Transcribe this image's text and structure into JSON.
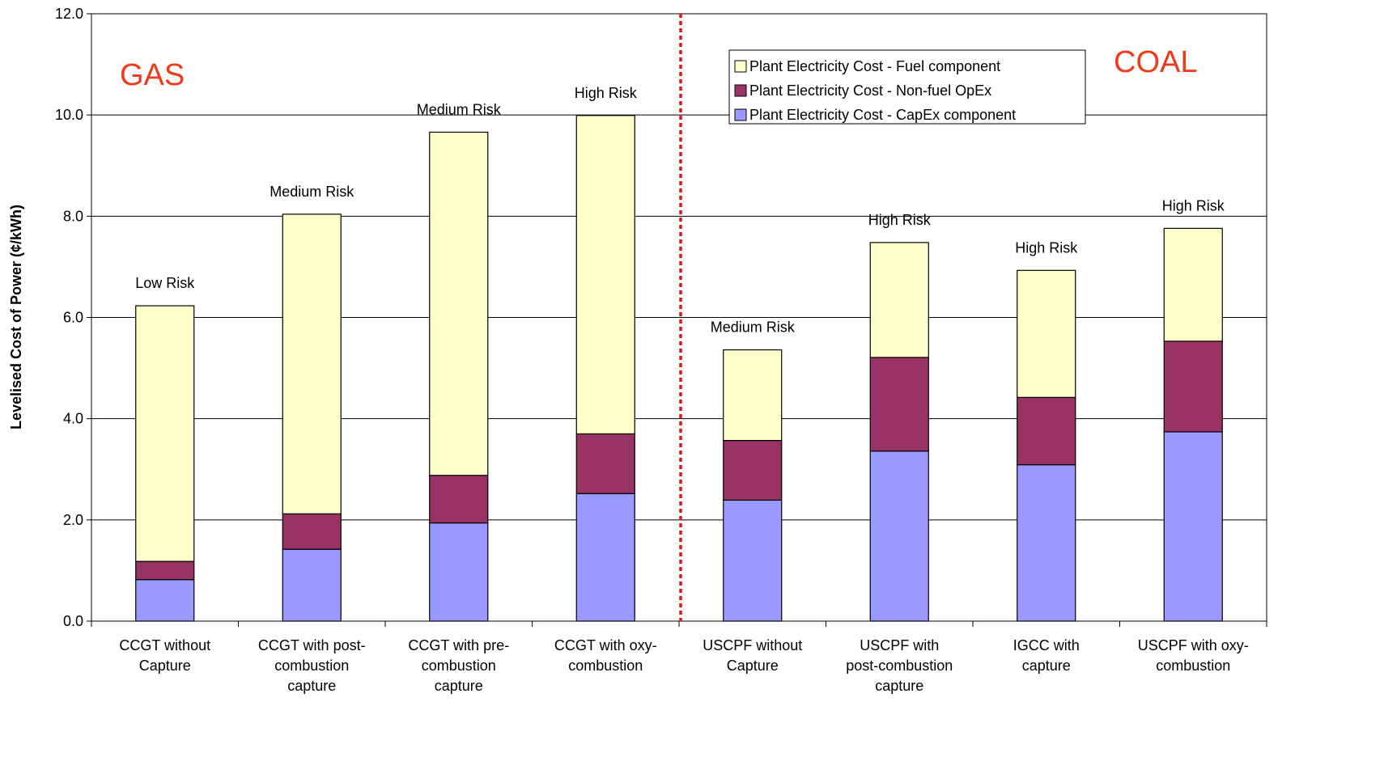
{
  "chart_data": {
    "type": "bar",
    "stacked": true,
    "ylabel": "Levelised Cost of Power (¢/kWh)",
    "ylim": [
      0,
      12
    ],
    "yticks": [
      "0.0",
      "2.0",
      "4.0",
      "6.0",
      "8.0",
      "10.0",
      "12.0"
    ],
    "grid": true,
    "legend_position": "top-right",
    "categories": [
      [
        "CCGT without",
        "Capture"
      ],
      [
        "CCGT with post-",
        "combustion",
        "capture"
      ],
      [
        "CCGT with pre-",
        "combustion",
        "capture"
      ],
      [
        "CCGT with oxy-",
        "combustion"
      ],
      [
        "USCPF without",
        "Capture"
      ],
      [
        "USCPF with",
        "post-combustion",
        "capture"
      ],
      [
        "IGCC with",
        "capture"
      ],
      [
        "USCPF with oxy-",
        "combustion"
      ]
    ],
    "series": [
      {
        "name": "Plant Electricity Cost - CapEx component",
        "color": "#9999ff",
        "values": [
          0.82,
          1.42,
          1.94,
          2.52,
          2.39,
          3.36,
          3.09,
          3.74
        ]
      },
      {
        "name": "Plant Electricity Cost - Non-fuel OpEx",
        "color": "#993366",
        "values": [
          0.36,
          0.7,
          0.94,
          1.18,
          1.18,
          1.85,
          1.33,
          1.79
        ]
      },
      {
        "name": "Plant Electricity Cost - Fuel component",
        "color": "#ffffcc",
        "values": [
          5.05,
          5.92,
          6.78,
          6.29,
          1.79,
          2.27,
          2.51,
          2.23
        ]
      }
    ],
    "legend_order": [
      2,
      1,
      0
    ],
    "risk_labels": [
      "Low Risk",
      "Medium Risk",
      "Medium Risk",
      "High Risk",
      "Medium Risk",
      "High Risk",
      "High Risk",
      "High Risk"
    ],
    "annotations": {
      "left_region": "GAS",
      "right_region": "COAL"
    },
    "divider_color": "#ee1111"
  }
}
